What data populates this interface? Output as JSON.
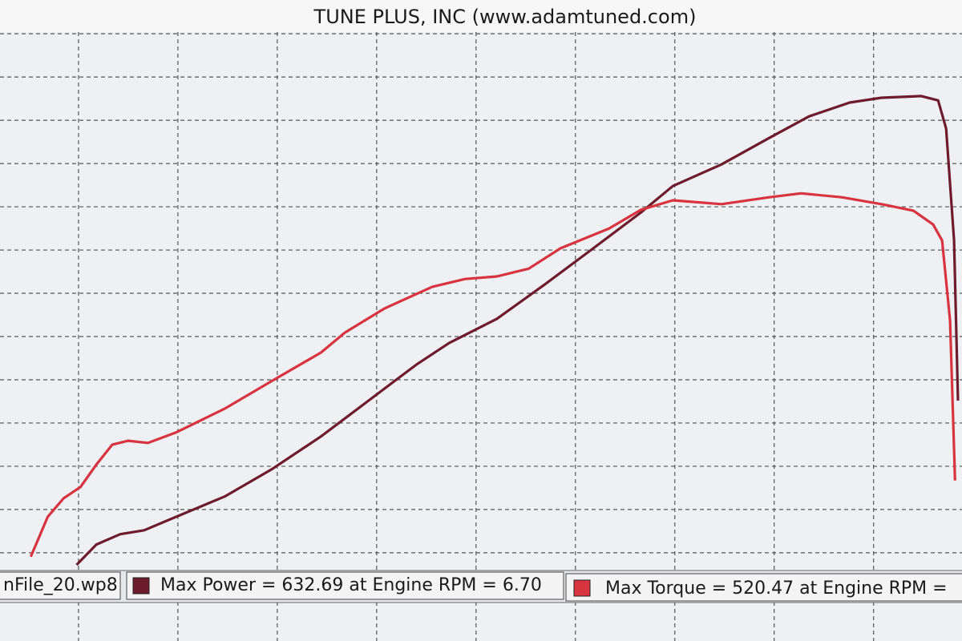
{
  "chart_data": {
    "type": "line",
    "title": "TUNE PLUS, INC (www.adamtuned.com)",
    "file_label": "nFile_20.wp8",
    "xlim": [
      -0.79,
      8.89
    ],
    "ylim": [
      -2.04,
      12.04
    ],
    "xticks": [
      0,
      1,
      2,
      3,
      4,
      5,
      6,
      7,
      8
    ],
    "yticks": [
      0,
      1,
      2,
      3,
      4,
      5,
      6,
      7,
      8,
      9,
      10,
      11,
      12
    ],
    "grid": true,
    "series": [
      {
        "name": "Max Power = 632.69 at Engine RPM = 6.70",
        "color": "#6e1c2c",
        "x": [
          -0.02,
          0.18,
          0.42,
          0.66,
          0.98,
          1.47,
          1.95,
          2.44,
          2.92,
          3.4,
          3.73,
          4.21,
          4.69,
          5.18,
          5.66,
          5.98,
          6.47,
          6.95,
          7.35,
          7.76,
          8.08,
          8.48,
          8.65,
          8.73,
          8.81,
          8.85
        ],
        "values": [
          -0.28,
          0.19,
          0.43,
          0.52,
          0.83,
          1.3,
          1.94,
          2.69,
          3.52,
          4.35,
          4.85,
          5.41,
          6.2,
          7.04,
          7.87,
          8.48,
          8.98,
          9.59,
          10.09,
          10.41,
          10.52,
          10.56,
          10.46,
          9.81,
          7.22,
          3.52
        ]
      },
      {
        "name": "Max Torque = 520.47 at Engine RPM =",
        "color": "#d8343f",
        "x": [
          -0.48,
          -0.31,
          -0.15,
          0.02,
          0.18,
          0.34,
          0.5,
          0.7,
          0.98,
          1.47,
          1.95,
          2.44,
          2.68,
          3.08,
          3.56,
          3.89,
          4.21,
          4.53,
          4.85,
          5.34,
          5.66,
          5.98,
          6.47,
          6.95,
          7.27,
          7.68,
          8.08,
          8.4,
          8.6,
          8.69,
          8.77,
          8.82
        ],
        "values": [
          -0.09,
          0.83,
          1.26,
          1.52,
          2.04,
          2.5,
          2.59,
          2.54,
          2.78,
          3.33,
          3.98,
          4.63,
          5.09,
          5.65,
          6.15,
          6.33,
          6.39,
          6.57,
          7.04,
          7.5,
          7.93,
          8.15,
          8.06,
          8.22,
          8.31,
          8.22,
          8.06,
          7.91,
          7.59,
          7.22,
          5.37,
          1.67
        ]
      }
    ]
  }
}
